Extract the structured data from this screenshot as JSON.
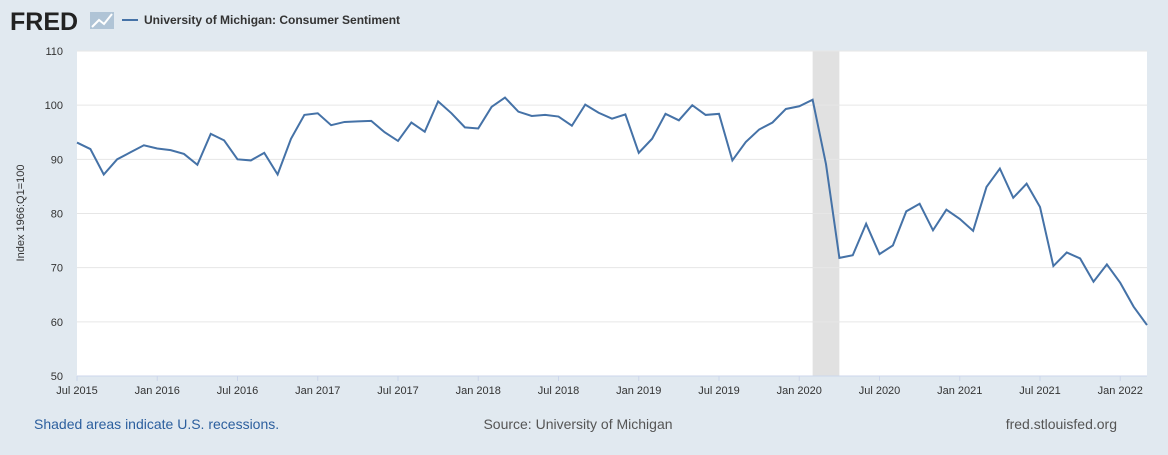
{
  "logo": "FRED",
  "chart_data": {
    "type": "line",
    "title": "University of Michigan: Consumer Sentiment",
    "ylabel": "Index 1966:Q1=100",
    "x": [
      "2015-07",
      "2015-08",
      "2015-09",
      "2015-10",
      "2015-11",
      "2015-12",
      "2016-01",
      "2016-02",
      "2016-03",
      "2016-04",
      "2016-05",
      "2016-06",
      "2016-07",
      "2016-08",
      "2016-09",
      "2016-10",
      "2016-11",
      "2016-12",
      "2017-01",
      "2017-02",
      "2017-03",
      "2017-04",
      "2017-05",
      "2017-06",
      "2017-07",
      "2017-08",
      "2017-09",
      "2017-10",
      "2017-11",
      "2017-12",
      "2018-01",
      "2018-02",
      "2018-03",
      "2018-04",
      "2018-05",
      "2018-06",
      "2018-07",
      "2018-08",
      "2018-09",
      "2018-10",
      "2018-11",
      "2018-12",
      "2019-01",
      "2019-02",
      "2019-03",
      "2019-04",
      "2019-05",
      "2019-06",
      "2019-07",
      "2019-08",
      "2019-09",
      "2019-10",
      "2019-11",
      "2019-12",
      "2020-01",
      "2020-02",
      "2020-03",
      "2020-04",
      "2020-05",
      "2020-06",
      "2020-07",
      "2020-08",
      "2020-09",
      "2020-10",
      "2020-11",
      "2020-12",
      "2021-01",
      "2021-02",
      "2021-03",
      "2021-04",
      "2021-05",
      "2021-06",
      "2021-07",
      "2021-08",
      "2021-09",
      "2021-10",
      "2021-11",
      "2021-12",
      "2022-01",
      "2022-02",
      "2022-03"
    ],
    "series": [
      {
        "name": "University of Michigan: Consumer Sentiment",
        "color": "#4572a7",
        "values": [
          93.1,
          91.9,
          87.2,
          90.0,
          91.3,
          92.6,
          92.0,
          91.7,
          91.0,
          89.0,
          94.7,
          93.5,
          90.0,
          89.8,
          91.2,
          87.2,
          93.8,
          98.2,
          98.5,
          96.3,
          96.9,
          97.0,
          97.1,
          95.0,
          93.4,
          96.8,
          95.1,
          100.7,
          98.5,
          95.9,
          95.7,
          99.7,
          101.4,
          98.8,
          98.0,
          98.2,
          97.9,
          96.2,
          100.1,
          98.6,
          97.5,
          98.3,
          91.2,
          93.8,
          98.4,
          97.2,
          100.0,
          98.2,
          98.4,
          89.8,
          93.2,
          95.5,
          96.8,
          99.3,
          99.8,
          101.0,
          89.1,
          71.8,
          72.3,
          78.1,
          72.5,
          74.1,
          80.4,
          81.8,
          76.9,
          80.7,
          79.0,
          76.8,
          84.9,
          88.3,
          82.9,
          85.5,
          81.2,
          70.3,
          72.8,
          71.7,
          67.4,
          70.6,
          67.2,
          62.8,
          59.4
        ]
      }
    ],
    "recessions": [
      [
        "2020-02",
        "2020-04"
      ]
    ],
    "xlim": [
      "2015-07",
      "2022-03"
    ],
    "xticks": [
      {
        "value": "2015-07",
        "label": "Jul 2015"
      },
      {
        "value": "2016-01",
        "label": "Jan 2016"
      },
      {
        "value": "2016-07",
        "label": "Jul 2016"
      },
      {
        "value": "2017-01",
        "label": "Jan 2017"
      },
      {
        "value": "2017-07",
        "label": "Jul 2017"
      },
      {
        "value": "2018-01",
        "label": "Jan 2018"
      },
      {
        "value": "2018-07",
        "label": "Jul 2018"
      },
      {
        "value": "2019-01",
        "label": "Jan 2019"
      },
      {
        "value": "2019-07",
        "label": "Jul 2019"
      },
      {
        "value": "2020-01",
        "label": "Jan 2020"
      },
      {
        "value": "2020-07",
        "label": "Jul 2020"
      },
      {
        "value": "2021-01",
        "label": "Jan 2021"
      },
      {
        "value": "2021-07",
        "label": "Jul 2021"
      },
      {
        "value": "2022-01",
        "label": "Jan 2022"
      }
    ],
    "ylim": [
      50,
      110
    ],
    "yticks": [
      50,
      60,
      70,
      80,
      90,
      100,
      110
    ],
    "grid": true,
    "notes": {
      "recession": "Shaded areas indicate U.S. recessions.",
      "source": "Source: University of Michigan",
      "site": "fred.stlouisfed.org"
    }
  }
}
